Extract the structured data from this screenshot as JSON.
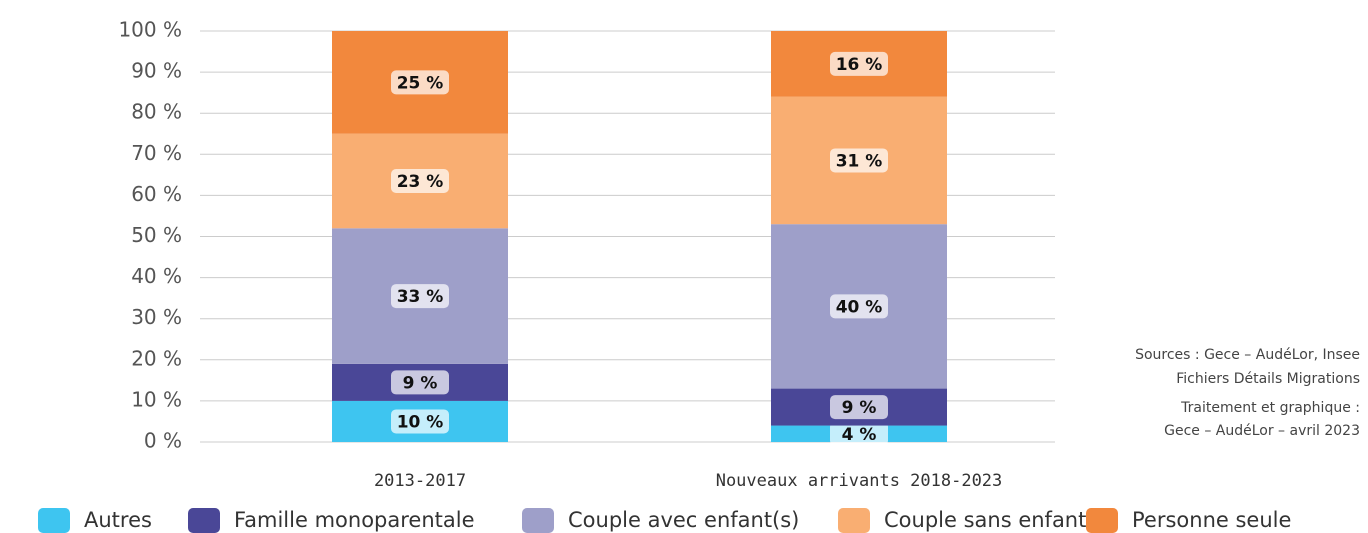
{
  "chart_data": {
    "type": "stacked_bar",
    "categories": [
      "2013-2017",
      "Nouveaux arrivants 2018-2023"
    ],
    "series": [
      {
        "name": "Autres",
        "color": "#3ec5f0",
        "values": [
          10,
          4
        ],
        "value_labels": [
          "10 %",
          "4 %"
        ]
      },
      {
        "name": "Famille monoparentale",
        "color": "#4a4797",
        "values": [
          9,
          9
        ],
        "value_labels": [
          "9 %",
          "9 %"
        ]
      },
      {
        "name": "Couple avec enfant(s)",
        "color": "#9e9fc9",
        "values": [
          33,
          40
        ],
        "value_labels": [
          "33 %",
          "40 %"
        ]
      },
      {
        "name": "Couple sans enfant",
        "color": "#f9ae72",
        "values": [
          23,
          31
        ],
        "value_labels": [
          "23 %",
          "31 %"
        ]
      },
      {
        "name": "Personne seule",
        "color": "#f2883d",
        "values": [
          25,
          16
        ],
        "value_labels": [
          "25 %",
          "16 %"
        ]
      }
    ],
    "ylim": [
      0,
      100
    ],
    "yticks": [
      {
        "value": 0,
        "label": "0 %"
      },
      {
        "value": 10,
        "label": "10 %"
      },
      {
        "value": 20,
        "label": "20 %"
      },
      {
        "value": 30,
        "label": "30 %"
      },
      {
        "value": 40,
        "label": "40 %"
      },
      {
        "value": 50,
        "label": "50 %"
      },
      {
        "value": 60,
        "label": "60 %"
      },
      {
        "value": 70,
        "label": "70 %"
      },
      {
        "value": 80,
        "label": "80 %"
      },
      {
        "value": 90,
        "label": "90 %"
      },
      {
        "value": 100,
        "label": "100 %"
      }
    ],
    "grid": true,
    "legend": "bottom",
    "annotations": [
      "Sources : Gece – AudéLor, Insee",
      "Fichiers Détails Migrations",
      "Traitement et graphique :",
      "Gece – AudéLor – avril 2023"
    ]
  }
}
